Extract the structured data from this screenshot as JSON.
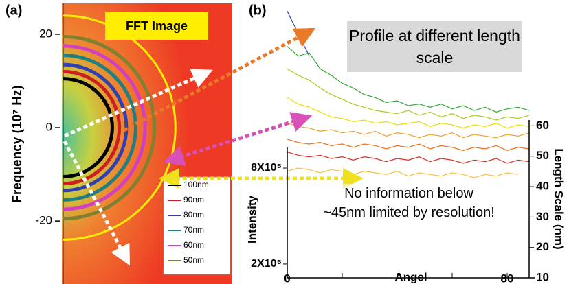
{
  "chart_data": [
    {
      "type": "arc",
      "panel_label": "(a)",
      "title": "FFT Image",
      "ylabel": "Frequency (10⁷ Hz)",
      "ylim": [
        -33.5,
        26.6
      ],
      "yticks": [
        -20,
        0,
        20
      ],
      "series": [
        {
          "name": "100nm",
          "color": "#000000",
          "values": [
            10.5
          ]
        },
        {
          "name": "90nm",
          "color": "#cc2020",
          "values": [
            12
          ]
        },
        {
          "name": "80nm",
          "color": "#3040b0",
          "values": [
            13.5
          ]
        },
        {
          "name": "70nm",
          "color": "#208080",
          "values": [
            15.5
          ]
        },
        {
          "name": "60nm",
          "color": "#d040c0",
          "values": [
            17.5
          ]
        },
        {
          "name": "50nm",
          "color": "#808030",
          "values": [
            19.5
          ]
        }
      ]
    },
    {
      "type": "line",
      "panel_label": "(b)",
      "title": "Profile at different length scale",
      "annotation": "No information below ~45nm limited by resolution!",
      "xlabel": "Angel",
      "ylabel": "Intensity",
      "y2label": "Length Scale (nm)",
      "x": [
        0,
        4,
        8,
        12,
        16,
        20,
        24,
        28,
        32,
        36,
        40,
        44,
        48,
        52,
        56,
        60,
        64,
        68,
        72,
        76,
        80,
        84,
        88
      ],
      "xlim": [
        0,
        90
      ],
      "xticks": [
        0,
        80
      ],
      "xminorticks": [
        20,
        40,
        60
      ],
      "ylim": [
        114000,
        1786000
      ],
      "yticks": [
        {
          "value": 200000,
          "label": "2X10⁵"
        },
        {
          "value": 800000,
          "label": "8X10⁵"
        }
      ],
      "y2lim": [
        10,
        98
      ],
      "y2ticks": [
        10,
        20,
        30,
        40,
        50,
        60
      ],
      "series": [
        {
          "color": "#3344cc",
          "values": [
            1780000,
            1640000,
            1500000,
            null,
            null,
            null,
            null,
            null,
            null,
            null,
            null,
            null,
            null,
            null,
            null,
            null,
            null,
            null,
            null,
            null,
            null,
            null,
            null
          ]
        },
        {
          "color": "#33aa33",
          "values": [
            1560000,
            1500000,
            1520000,
            1420000,
            1380000,
            1330000,
            1300000,
            1260000,
            1240000,
            1210000,
            1220000,
            1190000,
            1200000,
            1180000,
            1200000,
            1170000,
            1190000,
            1160000,
            1180000,
            1150000,
            1170000,
            1180000,
            1160000
          ]
        },
        {
          "color": "#aacc22",
          "values": [
            1420000,
            1380000,
            1350000,
            1300000,
            1260000,
            1230000,
            1200000,
            1180000,
            1160000,
            1150000,
            1140000,
            1160000,
            1130000,
            1150000,
            1120000,
            1140000,
            1110000,
            1130000,
            1120000,
            1100000,
            1120000,
            1110000,
            1130000
          ]
        },
        {
          "color": "#eedd00",
          "values": [
            1240000,
            1200000,
            1180000,
            1150000,
            1120000,
            1110000,
            1090000,
            1100000,
            1080000,
            1090000,
            1070000,
            1080000,
            1090000,
            1060000,
            1080000,
            1070000,
            1050000,
            1070000,
            1060000,
            1080000,
            1050000,
            1070000,
            1060000
          ]
        },
        {
          "color": "#f0a030",
          "values": [
            1080000,
            1060000,
            1050000,
            1030000,
            1040000,
            1020000,
            1030000,
            1010000,
            1030000,
            1000000,
            1020000,
            1010000,
            990000,
            1010000,
            1000000,
            1020000,
            990000,
            1010000,
            1000000,
            990000,
            1010000,
            1000000,
            1020000
          ]
        },
        {
          "color": "#e87020",
          "values": [
            980000,
            960000,
            950000,
            960000,
            940000,
            950000,
            930000,
            950000,
            940000,
            920000,
            940000,
            930000,
            950000,
            920000,
            940000,
            930000,
            910000,
            930000,
            920000,
            940000,
            910000,
            930000,
            920000
          ]
        },
        {
          "color": "#d83020",
          "values": [
            900000,
            880000,
            870000,
            880000,
            860000,
            870000,
            850000,
            870000,
            860000,
            840000,
            860000,
            850000,
            870000,
            840000,
            860000,
            850000,
            830000,
            850000,
            840000,
            860000,
            830000,
            850000,
            840000
          ]
        },
        {
          "color": "#f8c040",
          "values": [
            780000,
            800000,
            790000,
            770000,
            790000,
            780000,
            760000,
            780000,
            770000,
            760000,
            780000,
            750000,
            770000,
            760000,
            750000,
            770000,
            760000,
            740000,
            760000,
            750000,
            770000,
            760000,
            null
          ]
        }
      ]
    }
  ]
}
